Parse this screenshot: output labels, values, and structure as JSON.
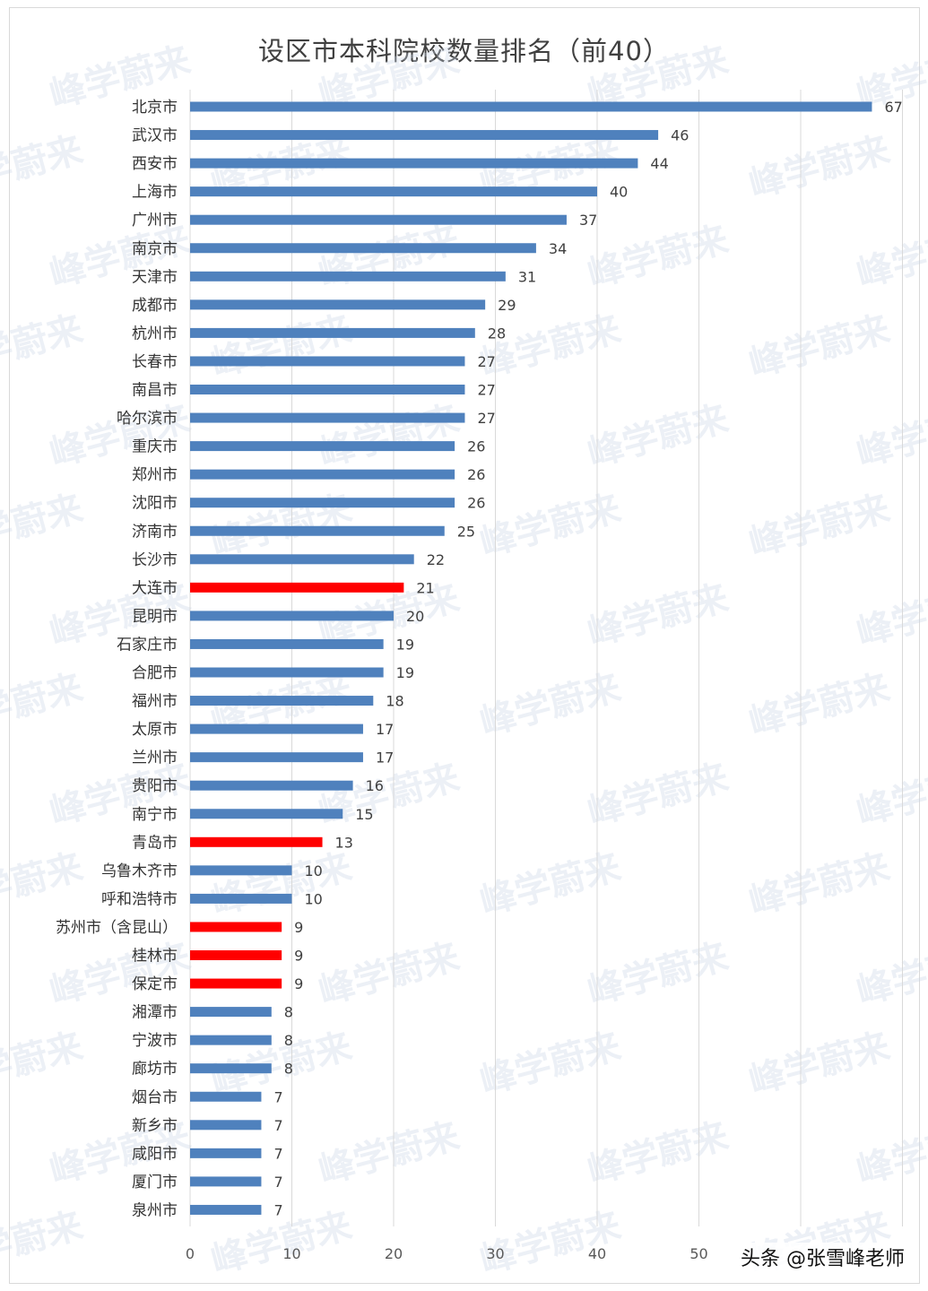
{
  "chart_data": {
    "type": "bar",
    "orientation": "horizontal",
    "title": "设区市本科院校数量排名（前40）",
    "categories": [
      "北京市",
      "武汉市",
      "西安市",
      "上海市",
      "广州市",
      "南京市",
      "天津市",
      "成都市",
      "杭州市",
      "长春市",
      "南昌市",
      "哈尔滨市",
      "重庆市",
      "郑州市",
      "沈阳市",
      "济南市",
      "长沙市",
      "大连市",
      "昆明市",
      "石家庄市",
      "合肥市",
      "福州市",
      "太原市",
      "兰州市",
      "贵阳市",
      "南宁市",
      "青岛市",
      "乌鲁木齐市",
      "呼和浩特市",
      "苏州市（含昆山）",
      "桂林市",
      "保定市",
      "湘潭市",
      "宁波市",
      "廊坊市",
      "烟台市",
      "新乡市",
      "咸阳市",
      "厦门市",
      "泉州市"
    ],
    "values": [
      67,
      46,
      44,
      40,
      37,
      34,
      31,
      29,
      28,
      27,
      27,
      27,
      26,
      26,
      26,
      25,
      22,
      21,
      20,
      19,
      19,
      18,
      17,
      17,
      16,
      15,
      13,
      10,
      10,
      9,
      9,
      9,
      8,
      8,
      8,
      7,
      7,
      7,
      7,
      7
    ],
    "highlighted": [
      "大连市",
      "青岛市",
      "苏州市（含昆山）",
      "桂林市",
      "保定市"
    ],
    "colors": {
      "default": "#4f81bd",
      "highlight": "#ff0000"
    },
    "xlim": [
      0,
      70
    ],
    "x_ticks": [
      "0",
      "10",
      "20",
      "30",
      "40",
      "50"
    ],
    "grid": true,
    "legend": "none"
  },
  "watermark": "峰学蔚来",
  "credit": "头条 @张雪峰老师"
}
